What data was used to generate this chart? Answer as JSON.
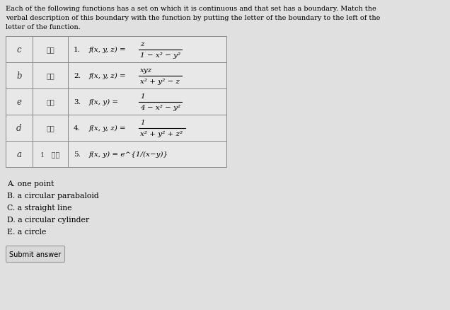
{
  "bg_color": "#e0e0e0",
  "header_text_line1": "Each of the following functions has a set on which it is continuous and that set has a boundary. Match the",
  "header_text_line2": "verbal description of this boundary with the function by putting the letter of the boundary to the left of the",
  "header_text_line3": "letter of the function.",
  "col1_answers": [
    "c",
    "b",
    "e",
    "d",
    "a"
  ],
  "col2_scores": [
    "✓⸎",
    "✓⸎",
    "✓⸎",
    "✓⸎",
    "1   ✓⸎"
  ],
  "rows": [
    {
      "number": "1.",
      "func": "f(x, y, z) =",
      "num": "z",
      "den": "1 − x² − y²"
    },
    {
      "number": "2.",
      "func": "f(x, y, z) =",
      "num": "xyz",
      "den": "x² + y² − z"
    },
    {
      "number": "3.",
      "func": "f(x, y) =",
      "num": "1",
      "den": "4 − x² − y²"
    },
    {
      "number": "4.",
      "func": "f(x, y, z) =",
      "num": "1",
      "den": "x² + y² + z²"
    },
    {
      "number": "5.",
      "func": "f(x, y) = e^{1/(x−y)}",
      "num": "",
      "den": ""
    }
  ],
  "answer_choices": [
    "A. one point",
    "B. a circular parabaloid",
    "C. a straight line",
    "D. a circular cylinder",
    "E. a circle"
  ],
  "submit_label": "Submit answer",
  "fig_width": 6.36,
  "fig_height": 4.39,
  "dpi": 100
}
